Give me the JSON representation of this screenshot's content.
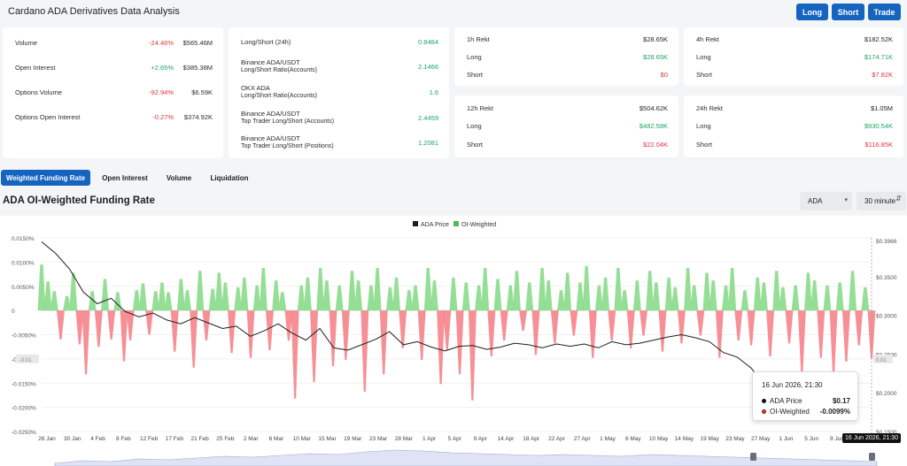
{
  "app_title": "Cardano ADA Derivatives Data Analysis",
  "top_buttons": [
    "Long",
    "Short",
    "Trade"
  ],
  "card1": [
    {
      "label": "Volume",
      "change": "-24.46%",
      "value": "$565.46M",
      "dir": "neg"
    },
    {
      "label": "Open Interest",
      "change": "+2.65%",
      "value": "$385.38M",
      "dir": "pos"
    },
    {
      "label": "Options Volume",
      "change": "-92.94%",
      "value": "$6.59K",
      "dir": "neg"
    },
    {
      "label": "Options Open Interest",
      "change": "-0.27%",
      "value": "$374.92K",
      "dir": "neg"
    }
  ],
  "card2": [
    {
      "label": "Long/Short (24h)",
      "sub": "",
      "value": "0.8484"
    },
    {
      "label": "Binance ADA/USDT",
      "sub": "Long/Short Ratio(Accounts)",
      "value": "2.1466"
    },
    {
      "label": "OKX ADA",
      "sub": "Long/Short Ratio(Accounts)",
      "value": "1.6"
    },
    {
      "label": "Binance ADA/USDT",
      "sub": "Top Trader Long/Short (Accounts)",
      "value": "2.4459"
    },
    {
      "label": "Binance ADA/USDT",
      "sub": "Top Trader Long/Short (Positions)",
      "value": "1.2081"
    }
  ],
  "rekt": [
    {
      "title": "1h Rekt",
      "total": "$28.65K",
      "long": "$28.65K",
      "short": "$0"
    },
    {
      "title": "4h Rekt",
      "total": "$182.52K",
      "long": "$174.71K",
      "short": "$7.82K"
    },
    {
      "title": "12h Rekt",
      "total": "$504.62K",
      "long": "$482.58K",
      "short": "$22.04K"
    },
    {
      "title": "24h Rekt",
      "total": "$1.05M",
      "long": "$930.54K",
      "short": "$116.85K"
    }
  ],
  "rekt_labels": {
    "long": "Long",
    "short": "Short"
  },
  "tabs": [
    "Weighted Funding Rate",
    "Open Interest",
    "Volume",
    "Liquidation"
  ],
  "section_title": "ADA OI-Weighted Funding Rate",
  "selects": {
    "coin": "ADA",
    "interval": "30 minute"
  },
  "tooltip": {
    "date": "16 Jun 2026, 21:30",
    "price_label": "ADA Price",
    "price_value": "$0.17",
    "rate_label": "OI-Weighted",
    "rate_value": "-0.0099%"
  },
  "x_badge": "16 Jun 2026, 21:30",
  "colors": {
    "accent": "#1565c0",
    "positive": "#6fcf6f",
    "negative": "#f27b80",
    "price_line": "#1d1d1d"
  },
  "chart_data": {
    "type": "bar+line",
    "legend": [
      "ADA Price",
      "OI-Weighted"
    ],
    "legend_placement": "top-center",
    "x_ticks": [
      "26 Jan",
      "30 Jan",
      "4 Feb",
      "8 Feb",
      "12 Feb",
      "17 Feb",
      "21 Feb",
      "25 Feb",
      "2 Mar",
      "6 Mar",
      "10 Mar",
      "15 Mar",
      "19 Mar",
      "23 Mar",
      "28 Mar",
      "1 Apr",
      "5 Apr",
      "9 Apr",
      "14 Apr",
      "18 Apr",
      "22 Apr",
      "27 Apr",
      "1 May",
      "6 May",
      "10 May",
      "14 May",
      "19 May",
      "23 May",
      "27 May",
      "1 Jun",
      "5 Jun",
      "9 Jun"
    ],
    "y_left_ticks": [
      "0.0150%",
      "0.0100%",
      "0.0050%",
      "0",
      "-0.0050%",
      "-0.0100%",
      "-0.0150%",
      "-0.0200%",
      "-0.0250%"
    ],
    "y_left_range": [
      -0.025,
      0.015
    ],
    "y_right_ticks": [
      "$0.3966",
      "$0.3500",
      "$0.3000",
      "$0.2500",
      "$0.2000",
      "$0.1500"
    ],
    "y_right_range": [
      0.15,
      0.4
    ],
    "series": [
      {
        "name": "OI-Weighted",
        "unit": "%",
        "values": [
          0.0095,
          0.006,
          0.004,
          -0.006,
          0.003,
          0.0078,
          -0.007,
          -0.0132,
          0.004,
          -0.0075,
          0.0065,
          -0.006,
          0.0038,
          -0.0105,
          -0.0062,
          0.0042,
          0.0056,
          -0.005,
          0.004,
          0.0058,
          0.0038,
          -0.0085,
          0.0065,
          0.0042,
          -0.0118,
          0.0082,
          -0.0062,
          0.0045,
          0.0078,
          0.0058,
          -0.0088,
          0.0048,
          0.0068,
          -0.0098,
          0.0052,
          0.0088,
          -0.0082,
          0.0062,
          0.0038,
          -0.0062,
          -0.0182,
          0.0052,
          0.0068,
          -0.0148,
          0.0088,
          0.0062,
          -0.0115,
          0.0052,
          -0.0102,
          0.0082,
          0.0062,
          -0.0168,
          0.0052,
          0.0088,
          -0.0132,
          0.0048,
          0.0068,
          -0.0078,
          0.0042,
          0.0052,
          -0.0102,
          0.0088,
          0.0062,
          -0.0152,
          -0.0082,
          0.0068,
          -0.0132,
          0.0058,
          -0.0186,
          0.0052,
          0.0088,
          -0.0095,
          0.0065,
          -0.0062,
          0.0052,
          0.0082,
          -0.0042,
          0.0058,
          -0.0092,
          0.0088,
          0.0062,
          -0.0068,
          0.0042,
          0.0078,
          -0.0052,
          0.0058,
          0.0092,
          -0.0098,
          0.0052,
          0.0068,
          -0.0062,
          0.0088,
          0.0042,
          -0.0078,
          0.0062,
          -0.0052,
          0.0082,
          0.0058,
          -0.0085,
          0.0068,
          0.0048,
          -0.0068,
          0.0088,
          0.0052,
          -0.0052,
          0.0078,
          0.0062,
          -0.0098,
          0.0052,
          0.0088,
          -0.0062,
          0.0042,
          -0.0072,
          0.0068,
          0.0058,
          -0.0095,
          0.0082,
          0.0048,
          -0.0068,
          0.0052,
          -0.0128,
          0.0078,
          0.0062,
          -0.0098,
          0.0052,
          -0.0128,
          0.0058,
          -0.0106,
          0.0082,
          -0.0072,
          0.0048,
          -0.0099
        ]
      },
      {
        "name": "ADA Price",
        "unit": "$",
        "values": [
          0.395,
          0.38,
          0.36,
          0.33,
          0.315,
          0.322,
          0.305,
          0.298,
          0.303,
          0.294,
          0.289,
          0.297,
          0.29,
          0.283,
          0.286,
          0.273,
          0.28,
          0.289,
          0.277,
          0.268,
          0.283,
          0.258,
          0.255,
          0.262,
          0.269,
          0.279,
          0.262,
          0.266,
          0.259,
          0.254,
          0.26,
          0.261,
          0.256,
          0.259,
          0.264,
          0.262,
          0.258,
          0.263,
          0.26,
          0.263,
          0.258,
          0.266,
          0.262,
          0.264,
          0.268,
          0.272,
          0.275,
          0.271,
          0.266,
          0.252,
          0.246,
          0.232,
          0.208,
          0.197,
          0.2,
          0.183,
          0.175,
          0.171,
          0.17
        ]
      }
    ],
    "range_markers": [
      "0.01",
      "-0.01"
    ]
  }
}
